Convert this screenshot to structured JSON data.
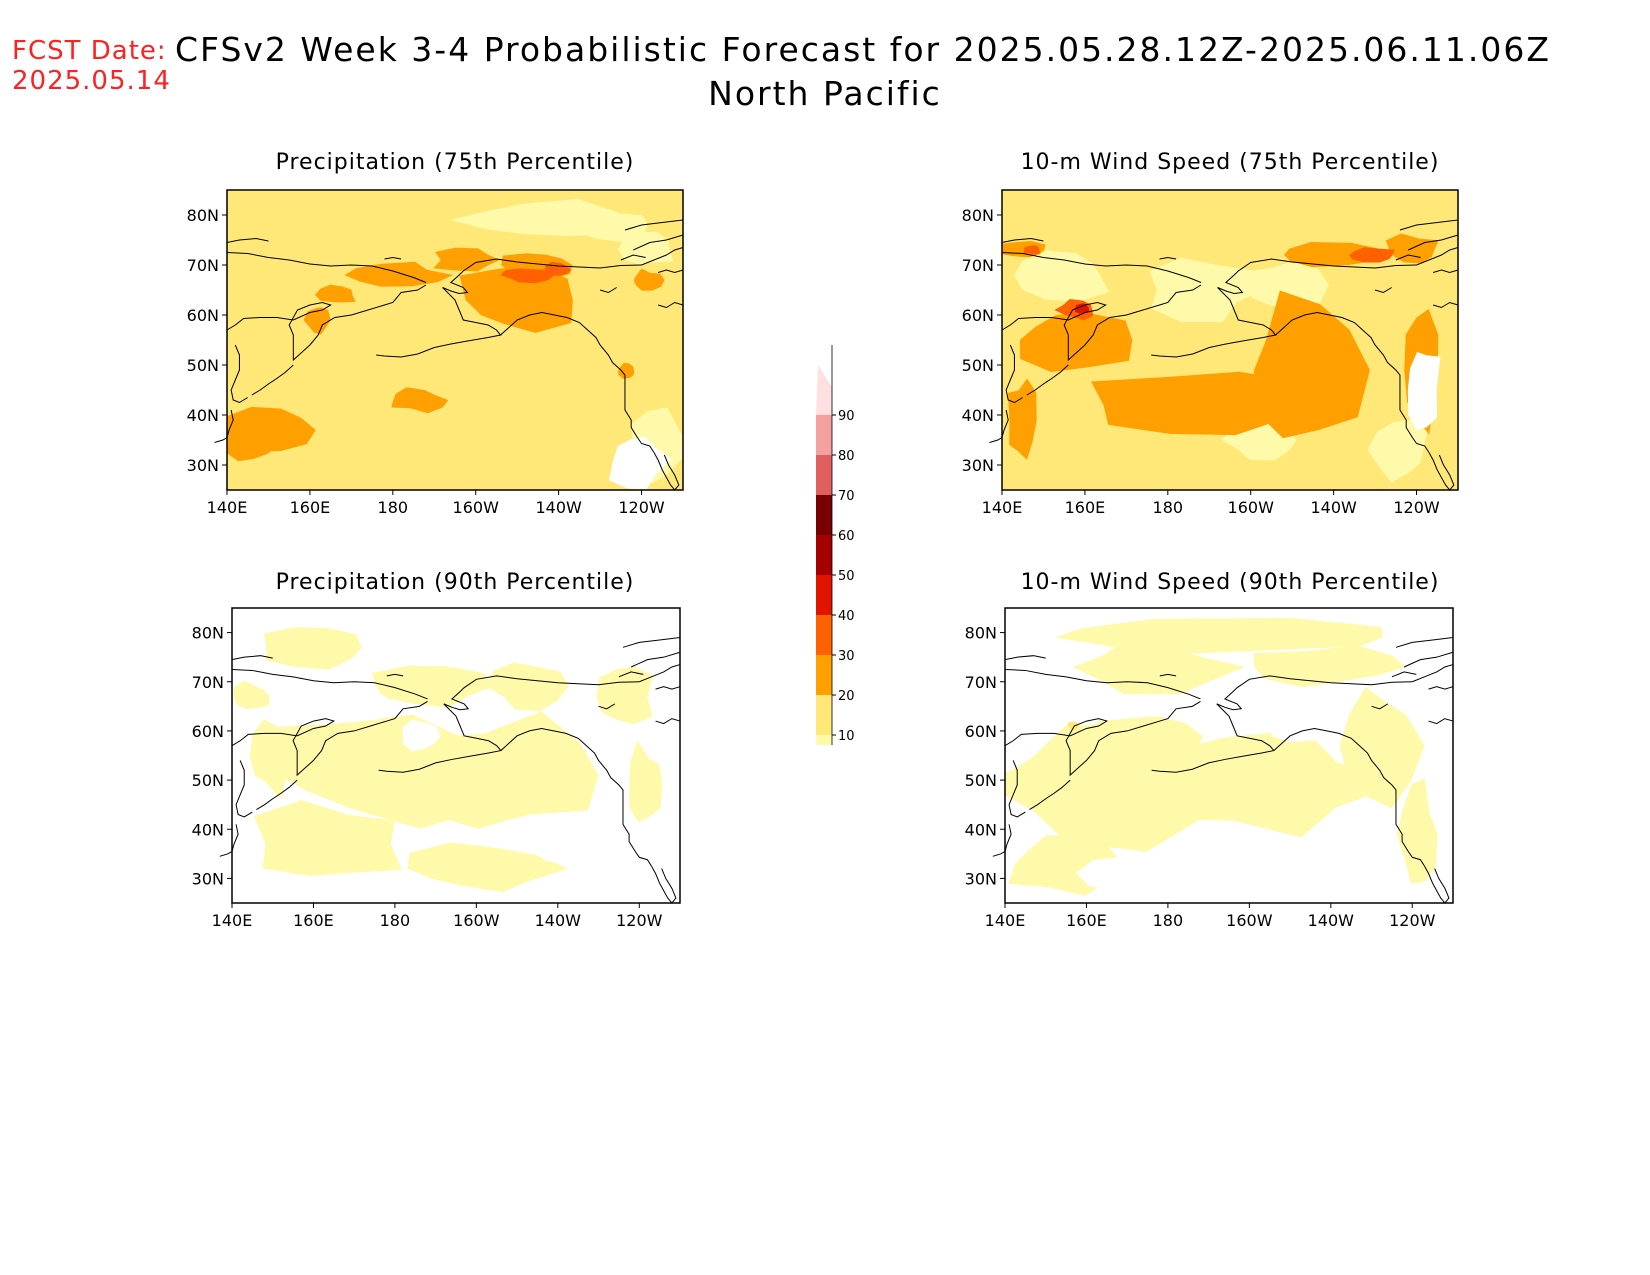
{
  "header": {
    "fcst_label": "FCST Date:",
    "fcst_date": "2025.05.14",
    "title": "CFSv2 Week 3-4 Probabilistic Forecast for 2025.05.28.12Z-2025.06.11.06Z",
    "subtitle": "North Pacific"
  },
  "panels": [
    {
      "id": "precip75",
      "title": "Precipitation (75th Percentile)"
    },
    {
      "id": "wind75",
      "title": "10-m Wind Speed (75th Percentile)"
    },
    {
      "id": "precip90",
      "title": "Precipitation (90th Percentile)"
    },
    {
      "id": "wind90",
      "title": "10-m Wind Speed (90th Percentile)"
    }
  ],
  "axes": {
    "lon_labels": [
      "140E",
      "160E",
      "180",
      "160W",
      "140W",
      "120W"
    ],
    "lat_labels": [
      "80N",
      "70N",
      "60N",
      "50N",
      "40N",
      "30N"
    ]
  },
  "colorbar": {
    "levels": [
      "10",
      "20",
      "30",
      "40",
      "50",
      "60",
      "70",
      "80",
      "90"
    ],
    "colors": [
      "#fffaaa",
      "#ffe878",
      "#ffa000",
      "#ff6000",
      "#e11400",
      "#a50000",
      "#780000",
      "#e06060",
      "#f4a0a0",
      "#ffe0e0"
    ]
  }
}
